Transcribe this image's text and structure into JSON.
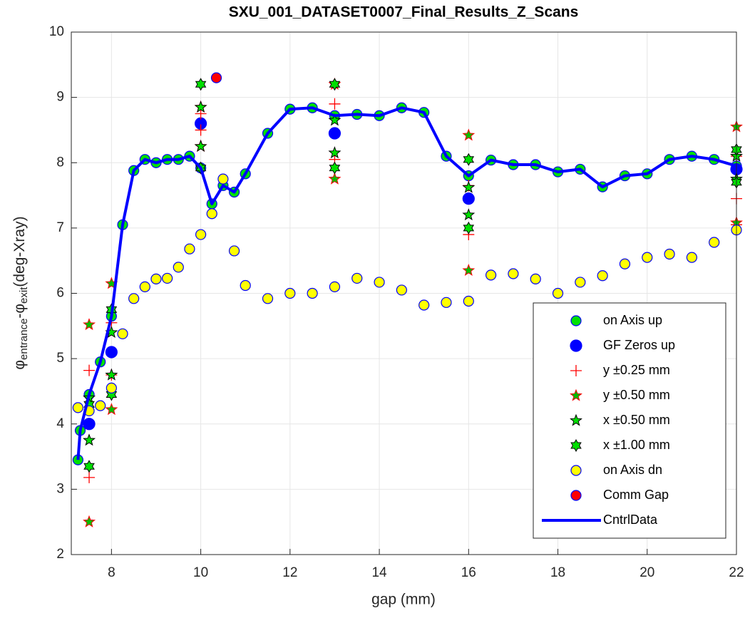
{
  "chart_data": {
    "type": "scatter",
    "title": "SXU_001_DATASET0007_Final_Results_Z_Scans",
    "xlabel": "gap (mm)",
    "ylabel": [
      "φ",
      "entrance",
      "-φ",
      "exit",
      "(deg-Xray)"
    ],
    "xlim": [
      7.1,
      22
    ],
    "ylim": [
      2,
      10
    ],
    "xticks": [
      8,
      10,
      12,
      14,
      16,
      18,
      20,
      22
    ],
    "yticks": [
      2,
      3,
      4,
      5,
      6,
      7,
      8,
      9,
      10
    ],
    "grid": true,
    "legend": "southeast",
    "series": [
      {
        "name": "on Axis up",
        "marker": "o",
        "color": "#0000ff",
        "fill": "#00e000",
        "x": [
          7.25,
          7.3,
          7.5,
          7.75,
          8,
          8.25,
          8.5,
          8.75,
          9,
          9.25,
          9.5,
          9.75,
          10,
          10.25,
          10.5,
          10.75,
          11,
          11.5,
          12,
          12.5,
          13,
          13.5,
          14,
          14.5,
          15,
          15.5,
          16,
          16.5,
          17,
          17.5,
          18,
          18.5,
          19,
          19.5,
          20,
          20.5,
          21,
          21.5,
          22
        ],
        "values": [
          3.45,
          3.9,
          4.45,
          4.95,
          5.65,
          7.05,
          7.88,
          8.05,
          8.0,
          8.05,
          8.05,
          8.1,
          7.92,
          7.37,
          7.65,
          7.55,
          7.83,
          8.45,
          8.82,
          8.84,
          8.72,
          8.74,
          8.72,
          8.84,
          8.77,
          8.1,
          7.8,
          8.04,
          7.97,
          7.97,
          7.86,
          7.9,
          7.63,
          7.8,
          7.83,
          8.05,
          8.1,
          8.05,
          7.95
        ]
      },
      {
        "name": "GF Zeros up",
        "marker": "o",
        "color": "#0000ff",
        "fill": "#0000ff",
        "x": [
          7.5,
          8,
          10,
          13,
          16,
          22
        ],
        "values": [
          4.0,
          5.1,
          8.6,
          8.45,
          7.45,
          7.9
        ]
      },
      {
        "name": "y ±0.25 mm",
        "marker": "+",
        "color": "#ff0000",
        "fill": "none",
        "x": [
          7.5,
          7.5,
          8,
          8,
          10,
          10,
          13,
          13,
          16,
          16,
          22,
          22,
          22
        ],
        "values": [
          4.82,
          3.18,
          5.55,
          4.75,
          8.75,
          8.5,
          8.9,
          8.05,
          6.9,
          7.65,
          7.45,
          7.05,
          8.1
        ]
      },
      {
        "name": "y ±0.50 mm",
        "marker": "p",
        "color": "#ff0000",
        "fill": "#00c000",
        "x": [
          7.5,
          7.5,
          8,
          8,
          10,
          10,
          13,
          13,
          16,
          16,
          22,
          22
        ],
        "values": [
          5.52,
          2.5,
          6.15,
          4.22,
          8.85,
          8.25,
          9.2,
          7.75,
          8.42,
          6.35,
          8.55,
          7.08
        ]
      },
      {
        "name": "x ±0.50 mm",
        "marker": "p",
        "color": "#000000",
        "fill": "#00e000",
        "x": [
          7.5,
          7.5,
          8,
          8,
          10,
          10,
          13,
          13,
          16,
          16,
          22,
          22
        ],
        "values": [
          4.4,
          3.75,
          5.4,
          4.75,
          8.85,
          8.25,
          8.65,
          8.15,
          7.62,
          7.2,
          8.1,
          7.75
        ]
      },
      {
        "name": "x ±1.00 mm",
        "marker": "h",
        "color": "#000000",
        "fill": "#00e000",
        "x": [
          7.5,
          7.5,
          8,
          8,
          10,
          10,
          13,
          13,
          16,
          16,
          22,
          22
        ],
        "values": [
          4.3,
          3.35,
          5.75,
          4.45,
          9.2,
          7.92,
          9.2,
          7.92,
          8.05,
          7.0,
          8.2,
          7.7
        ]
      },
      {
        "name": "on Axis dn",
        "marker": "o",
        "color": "#0000ff",
        "fill": "#ffff00",
        "x": [
          7.25,
          7.5,
          7.75,
          8,
          8.25,
          8.5,
          8.75,
          9,
          9.25,
          9.5,
          9.75,
          10,
          10.25,
          10.5,
          10.75,
          11,
          11.5,
          12,
          12.5,
          13,
          13.5,
          14,
          14.5,
          15,
          15.5,
          16,
          16.5,
          17,
          17.5,
          18,
          18.5,
          19,
          19.5,
          20,
          20.5,
          21,
          21.5,
          22
        ],
        "values": [
          4.25,
          4.2,
          4.28,
          4.55,
          5.38,
          5.92,
          6.1,
          6.22,
          6.23,
          6.4,
          6.68,
          6.9,
          7.22,
          7.75,
          6.65,
          6.12,
          5.92,
          6.0,
          6.0,
          6.1,
          6.23,
          6.17,
          6.05,
          5.82,
          5.86,
          5.88,
          6.28,
          6.3,
          6.22,
          6.0,
          6.17,
          6.27,
          6.45,
          6.55,
          6.6,
          6.55,
          6.78,
          6.97
        ]
      },
      {
        "name": "Comm Gap",
        "marker": "o",
        "color": "#0000ff",
        "fill": "#ff0000",
        "x": [
          10.35
        ],
        "values": [
          9.3
        ]
      },
      {
        "name": "CntrlData",
        "marker": "line",
        "color": "#0000ff",
        "fill": "none",
        "x": [
          7.25,
          7.3,
          7.5,
          7.75,
          8,
          8.25,
          8.5,
          8.75,
          9,
          9.25,
          9.5,
          9.75,
          10,
          10.25,
          10.5,
          10.75,
          11,
          11.5,
          12,
          12.5,
          13,
          13.5,
          14,
          14.5,
          15,
          15.5,
          16,
          16.5,
          17,
          17.5,
          18,
          18.5,
          19,
          19.5,
          20,
          20.5,
          21,
          21.5,
          22
        ],
        "values": [
          3.45,
          3.9,
          4.45,
          4.95,
          5.65,
          7.05,
          7.88,
          8.05,
          8.0,
          8.05,
          8.05,
          8.1,
          7.92,
          7.37,
          7.65,
          7.55,
          7.83,
          8.45,
          8.82,
          8.84,
          8.72,
          8.74,
          8.72,
          8.84,
          8.77,
          8.1,
          7.8,
          8.04,
          7.97,
          7.97,
          7.86,
          7.9,
          7.63,
          7.8,
          7.83,
          8.05,
          8.1,
          8.05,
          7.95
        ]
      }
    ]
  }
}
